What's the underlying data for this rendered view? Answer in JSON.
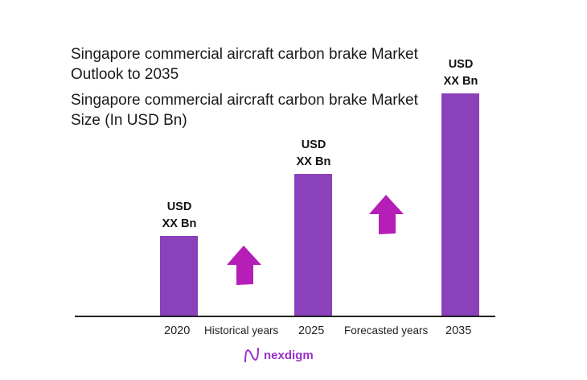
{
  "chart_data": {
    "type": "bar",
    "title": "Singapore commercial aircraft carbon brake Market Outlook to 2035",
    "subtitle": "Singapore commercial aircraft carbon brake Market Size (In USD Bn)",
    "categories": [
      "2020",
      "2025",
      "2035"
    ],
    "values": [
      36,
      64,
      100
    ],
    "value_scale_note": "relative bar heights (0-100), actual values not shown",
    "data_labels": [
      [
        "USD",
        "XX Bn"
      ],
      [
        "USD",
        "XX Bn"
      ],
      [
        "USD",
        "XX Bn"
      ]
    ],
    "period_labels": [
      "Historical years",
      "Forecasted years"
    ],
    "bar_color": "#8a41b9",
    "arrow_color": "#b51fb8",
    "grid": false,
    "ylim": [
      0,
      100
    ]
  },
  "brand": {
    "name": "nexdigm",
    "color": "#9b30c9"
  }
}
